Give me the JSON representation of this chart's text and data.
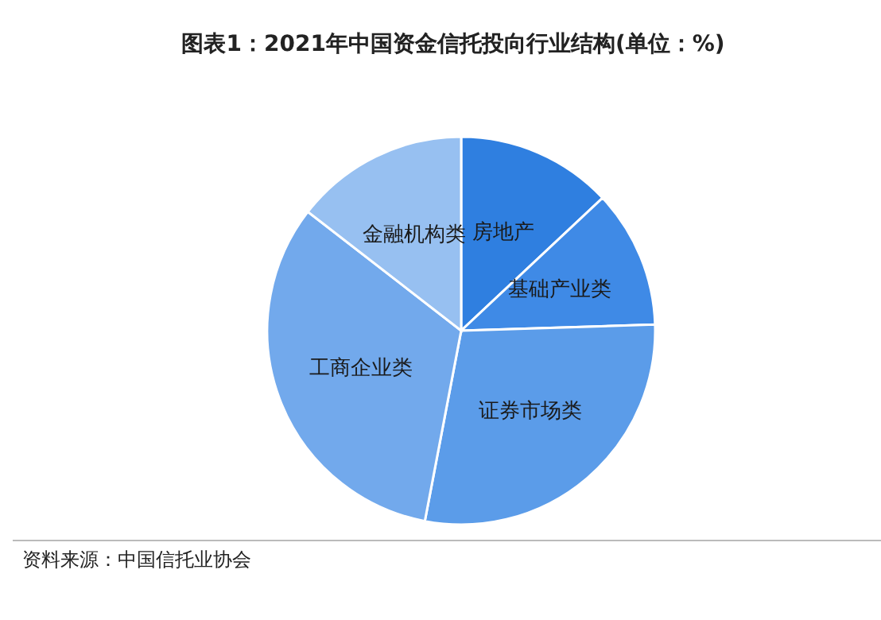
{
  "chart_data": {
    "type": "pie",
    "title": "图表1：2021年中国资金信托投向行业结构(单位：%)",
    "categories": [
      "房地产",
      "基础产业类",
      "证券市场类",
      "工商企业类",
      "金融机构类"
    ],
    "values": [
      13,
      11.5,
      28.5,
      32.5,
      14.5
    ],
    "colors": [
      "#2f7fe0",
      "#3f8ae6",
      "#5b9ce9",
      "#72a9ec",
      "#97c0f1"
    ],
    "annotations": [
      "资料来源：中国信托业协会"
    ]
  }
}
